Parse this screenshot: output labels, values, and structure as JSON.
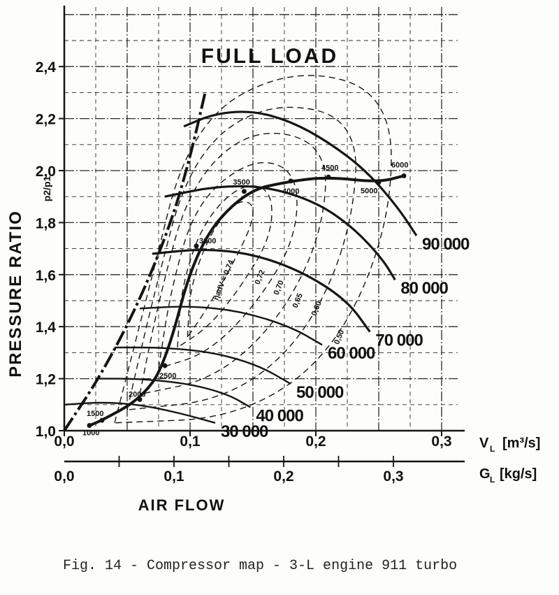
{
  "caption": "Fig. 14 - Compressor map - 3-L engine 911 turbo",
  "chart_data": {
    "type": "line",
    "title": "FULL LOAD",
    "ylabel": "PRESSURE RATIO",
    "ylabel_symbol": "p2/p1",
    "xlabel": "AIR FLOW",
    "x_axis_vl": {
      "label": "V",
      "subscript": "L",
      "unit": "[m³/s]",
      "ticks": [
        "0,0",
        "0,1",
        "0,2",
        "0,3"
      ],
      "range": [
        0,
        0.3
      ]
    },
    "x_axis_gl": {
      "label": "G",
      "subscript": "L",
      "unit": "[kg/s]",
      "ticks": [
        "0,0",
        "0,1",
        "0,2",
        "0,3"
      ],
      "range": [
        0,
        0.3
      ]
    },
    "y_axis": {
      "ticks": [
        "1,0",
        "1,2",
        "1,4",
        "1,6",
        "1,8",
        "2,0",
        "2,2",
        "2,4"
      ],
      "range": [
        1.0,
        2.6
      ]
    },
    "grid": true,
    "speed_lines": [
      {
        "label": "30000",
        "display": "30 000",
        "points": [
          [
            0.0,
            1.1
          ],
          [
            0.03,
            1.11
          ],
          [
            0.06,
            1.1
          ],
          [
            0.09,
            1.07
          ],
          [
            0.12,
            1.03
          ]
        ]
      },
      {
        "label": "40000",
        "display": "40 000",
        "points": [
          [
            0.025,
            1.2
          ],
          [
            0.06,
            1.2
          ],
          [
            0.1,
            1.18
          ],
          [
            0.13,
            1.14
          ],
          [
            0.148,
            1.09
          ]
        ]
      },
      {
        "label": "50000",
        "display": "50 000",
        "points": [
          [
            0.04,
            1.32
          ],
          [
            0.08,
            1.32
          ],
          [
            0.12,
            1.3
          ],
          [
            0.155,
            1.25
          ],
          [
            0.18,
            1.18
          ]
        ]
      },
      {
        "label": "60000",
        "display": "60 000",
        "points": [
          [
            0.06,
            1.47
          ],
          [
            0.1,
            1.48
          ],
          [
            0.14,
            1.46
          ],
          [
            0.18,
            1.4
          ],
          [
            0.205,
            1.33
          ]
        ]
      },
      {
        "label": "70000",
        "display": "70 000",
        "points": [
          [
            0.07,
            1.68
          ],
          [
            0.11,
            1.7
          ],
          [
            0.15,
            1.68
          ],
          [
            0.19,
            1.61
          ],
          [
            0.225,
            1.5
          ],
          [
            0.243,
            1.38
          ]
        ]
      },
      {
        "label": "80000",
        "display": "80 000",
        "points": [
          [
            0.08,
            1.9
          ],
          [
            0.12,
            1.94
          ],
          [
            0.16,
            1.94
          ],
          [
            0.2,
            1.88
          ],
          [
            0.23,
            1.78
          ],
          [
            0.253,
            1.66
          ],
          [
            0.263,
            1.58
          ]
        ]
      },
      {
        "label": "90000",
        "display": "90 000",
        "points": [
          [
            0.095,
            2.17
          ],
          [
            0.12,
            2.22
          ],
          [
            0.15,
            2.23
          ],
          [
            0.18,
            2.19
          ],
          [
            0.21,
            2.11
          ],
          [
            0.24,
            2.0
          ],
          [
            0.265,
            1.86
          ],
          [
            0.28,
            1.75
          ]
        ]
      }
    ],
    "surge_line": [
      [
        0.0,
        1.0
      ],
      [
        0.03,
        1.22
      ],
      [
        0.06,
        1.5
      ],
      [
        0.085,
        1.8
      ],
      [
        0.1,
        2.05
      ],
      [
        0.112,
        2.3
      ]
    ],
    "engine_operating_line": {
      "points": [
        {
          "x": 0.02,
          "y": 1.02,
          "rpm": "1000"
        },
        {
          "x": 0.03,
          "y": 1.04,
          "rpm": "1500"
        },
        {
          "x": 0.06,
          "y": 1.12,
          "rpm": "2000"
        },
        {
          "x": 0.08,
          "y": 1.25,
          "rpm": "2500"
        },
        {
          "x": 0.105,
          "y": 1.71,
          "rpm": "3000"
        },
        {
          "x": 0.143,
          "y": 1.92,
          "rpm": "3500"
        },
        {
          "x": 0.18,
          "y": 1.96,
          "rpm": "4000"
        },
        {
          "x": 0.21,
          "y": 1.975,
          "rpm": "4500"
        },
        {
          "x": 0.25,
          "y": 1.955,
          "rpm": "5000"
        },
        {
          "x": 0.27,
          "y": 1.98,
          "rpm": "6000"
        }
      ]
    },
    "efficiency_labels": [
      "ηadV = 0,74",
      "0,72",
      "0,70",
      "0,65",
      "0,60",
      "0,50"
    ],
    "efficiency_islands": [
      {
        "label": "0,74",
        "points": [
          [
            0.098,
            1.36
          ],
          [
            0.1,
            1.55
          ],
          [
            0.115,
            1.75
          ],
          [
            0.135,
            1.88
          ],
          [
            0.15,
            1.88
          ],
          [
            0.15,
            1.8
          ],
          [
            0.135,
            1.65
          ],
          [
            0.115,
            1.48
          ],
          [
            0.098,
            1.36
          ]
        ]
      },
      {
        "label": "0,72",
        "points": [
          [
            0.09,
            1.32
          ],
          [
            0.093,
            1.55
          ],
          [
            0.11,
            1.8
          ],
          [
            0.14,
            1.95
          ],
          [
            0.165,
            1.93
          ],
          [
            0.165,
            1.75
          ],
          [
            0.14,
            1.55
          ],
          [
            0.115,
            1.4
          ],
          [
            0.09,
            1.32
          ]
        ]
      },
      {
        "label": "0,70",
        "points": [
          [
            0.075,
            1.24
          ],
          [
            0.085,
            1.55
          ],
          [
            0.105,
            1.88
          ],
          [
            0.15,
            2.05
          ],
          [
            0.185,
            2.0
          ],
          [
            0.185,
            1.75
          ],
          [
            0.155,
            1.5
          ],
          [
            0.115,
            1.3
          ],
          [
            0.075,
            1.24
          ]
        ]
      },
      {
        "label": "0,65",
        "points": [
          [
            0.06,
            1.14
          ],
          [
            0.075,
            1.5
          ],
          [
            0.1,
            1.95
          ],
          [
            0.15,
            2.17
          ],
          [
            0.21,
            2.1
          ],
          [
            0.205,
            1.75
          ],
          [
            0.17,
            1.42
          ],
          [
            0.12,
            1.2
          ],
          [
            0.06,
            1.14
          ]
        ]
      },
      {
        "label": "0,60",
        "points": [
          [
            0.05,
            1.08
          ],
          [
            0.07,
            1.5
          ],
          [
            0.1,
            2.05
          ],
          [
            0.16,
            2.27
          ],
          [
            0.235,
            2.2
          ],
          [
            0.228,
            1.75
          ],
          [
            0.19,
            1.35
          ],
          [
            0.13,
            1.12
          ],
          [
            0.05,
            1.08
          ]
        ]
      },
      {
        "label": "0,50",
        "points": [
          [
            0.04,
            1.03
          ],
          [
            0.065,
            1.5
          ],
          [
            0.1,
            2.18
          ],
          [
            0.18,
            2.4
          ],
          [
            0.26,
            2.3
          ],
          [
            0.26,
            1.8
          ],
          [
            0.215,
            1.3
          ],
          [
            0.14,
            1.05
          ],
          [
            0.04,
            1.03
          ]
        ]
      }
    ],
    "colors": {
      "ink": "#151515",
      "grid": "#2a2a2a",
      "paper": "#fdfdfb"
    }
  }
}
